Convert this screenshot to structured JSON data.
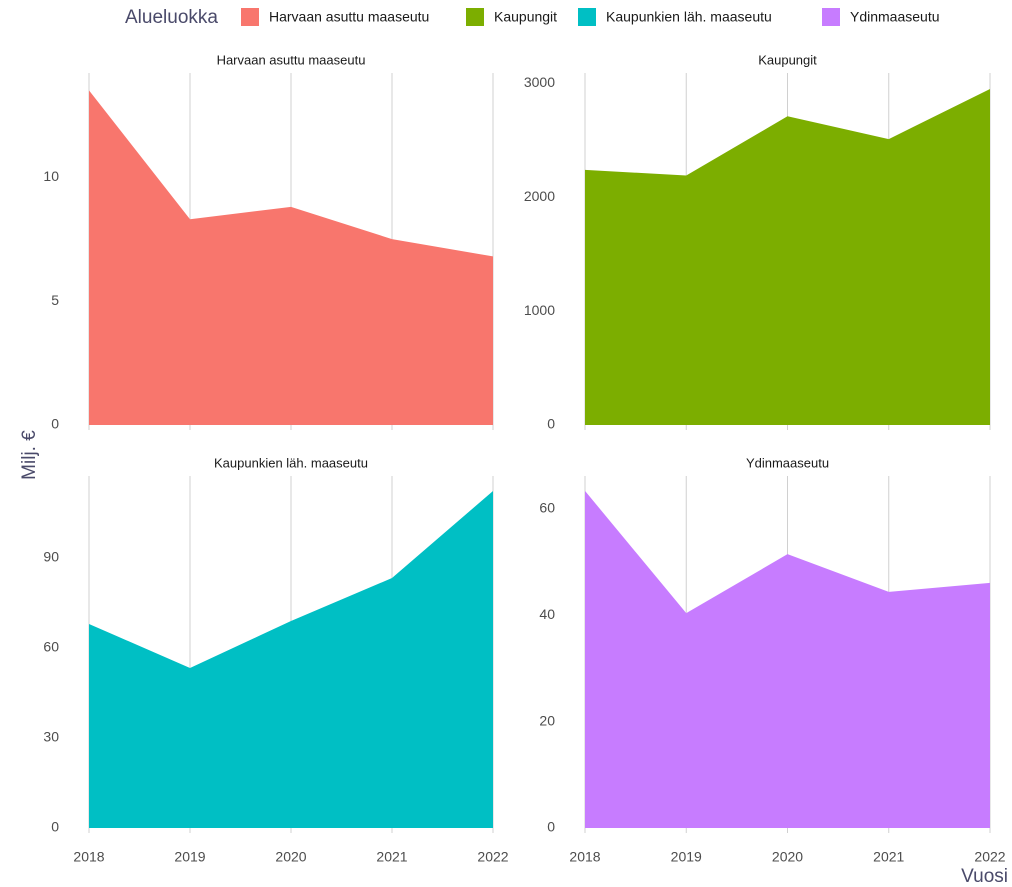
{
  "legend_title": "Alueluokka",
  "ylabel": "Milj. €",
  "xlabel": "Vuosi",
  "chart_data": [
    {
      "type": "area",
      "title": "Harvaan asuttu maaseutu",
      "x": [
        2018,
        2019,
        2020,
        2021,
        2022
      ],
      "series": [
        {
          "name": "Harvaan asuttu maaseutu",
          "color": "#f8766d",
          "values": [
            13.5,
            8.3,
            8.8,
            7.5,
            6.8
          ]
        }
      ],
      "xlim": [
        2018,
        2022
      ],
      "xticks": [
        2018,
        2019,
        2020,
        2021,
        2022
      ],
      "ylim": [
        0,
        14.2
      ],
      "yticks": [
        0,
        5,
        10
      ],
      "grid": true
    },
    {
      "type": "area",
      "title": "Kaupungit",
      "x": [
        2018,
        2019,
        2020,
        2021,
        2022
      ],
      "series": [
        {
          "name": "Kaupungit",
          "color": "#7cae00",
          "values": [
            2240,
            2190,
            2710,
            2510,
            2950
          ]
        }
      ],
      "xlim": [
        2018,
        2022
      ],
      "xticks": [
        2018,
        2019,
        2020,
        2021,
        2022
      ],
      "ylim": [
        0,
        3090
      ],
      "yticks": [
        0,
        1000,
        2000,
        3000
      ],
      "grid": true
    },
    {
      "type": "area",
      "title": "Kaupunkien läh. maaseutu",
      "x": [
        2018,
        2019,
        2020,
        2021,
        2022
      ],
      "series": [
        {
          "name": "Kaupunkien läh. maaseutu",
          "color": "#00bfc4",
          "values": [
            68,
            53.3,
            69,
            83.3,
            112.3
          ]
        }
      ],
      "xlim": [
        2018,
        2022
      ],
      "xticks": [
        2018,
        2019,
        2020,
        2021,
        2022
      ],
      "ylim": [
        0,
        117.3
      ],
      "yticks": [
        0,
        30,
        60,
        90
      ],
      "grid": true
    },
    {
      "type": "area",
      "title": "Ydinmaaseutu",
      "x": [
        2018,
        2019,
        2020,
        2021,
        2022
      ],
      "series": [
        {
          "name": "Ydinmaaseutu",
          "color": "#c77cff",
          "values": [
            63.4,
            40.4,
            51.5,
            44.4,
            46.1
          ]
        }
      ],
      "xlim": [
        2018,
        2022
      ],
      "xticks": [
        2018,
        2019,
        2020,
        2021,
        2022
      ],
      "ylim": [
        0,
        66.2
      ],
      "yticks": [
        0,
        20,
        40,
        60
      ],
      "grid": true
    }
  ]
}
